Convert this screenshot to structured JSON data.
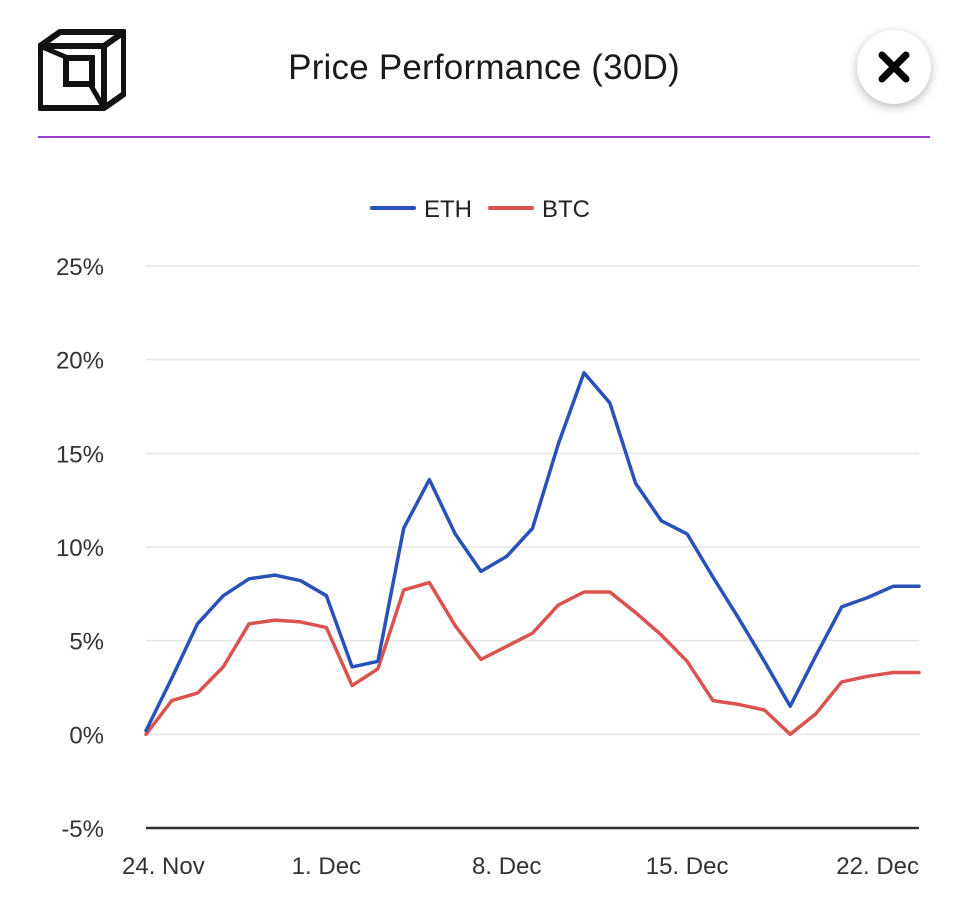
{
  "header": {
    "title": "Price Performance (30D)",
    "logo_icon": "cube-logo-icon",
    "close_icon": "close-icon",
    "divider_color": "#9b3fd6"
  },
  "chart_data": {
    "type": "line",
    "title": "Price Performance (30D)",
    "xlabel": "",
    "ylabel": "",
    "ylim": [
      -5,
      25
    ],
    "yticks": [
      -5,
      0,
      5,
      10,
      15,
      20,
      25
    ],
    "ytick_labels": [
      "-5%",
      "0%",
      "5%",
      "10%",
      "15%",
      "20%",
      "25%"
    ],
    "xlim": [
      0,
      30
    ],
    "xticks": [
      0,
      7,
      14,
      21,
      28
    ],
    "xtick_labels": [
      "24. Nov",
      "1. Dec",
      "8. Dec",
      "15. Dec",
      "22. Dec"
    ],
    "grid": true,
    "legend_position": "top-center",
    "x": [
      0,
      1,
      2,
      3,
      4,
      5,
      6,
      7,
      8,
      9,
      10,
      11,
      12,
      13,
      14,
      15,
      16,
      17,
      18,
      19,
      20,
      21,
      22,
      23,
      24,
      25,
      26,
      27,
      28,
      29,
      30
    ],
    "series": [
      {
        "name": "ETH",
        "color": "#2852b8",
        "values": [
          0.2,
          3.0,
          5.9,
          7.4,
          8.3,
          8.5,
          8.2,
          7.4,
          3.6,
          3.9,
          11.0,
          13.6,
          10.7,
          8.7,
          9.5,
          11.0,
          15.5,
          19.3,
          17.7,
          13.4,
          11.4,
          10.7,
          8.4,
          6.2,
          3.9,
          1.5,
          4.2,
          6.8,
          7.3,
          7.9,
          7.9
        ]
      },
      {
        "name": "BTC",
        "color": "#d9534f",
        "values": [
          0.0,
          1.8,
          2.2,
          3.6,
          5.9,
          6.1,
          6.0,
          5.7,
          2.6,
          3.5,
          7.7,
          8.1,
          5.8,
          4.0,
          4.7,
          5.4,
          6.9,
          7.6,
          7.6,
          6.5,
          5.3,
          3.9,
          1.8,
          1.6,
          1.3,
          0.0,
          1.1,
          2.8,
          3.1,
          3.3,
          3.3
        ]
      }
    ]
  }
}
